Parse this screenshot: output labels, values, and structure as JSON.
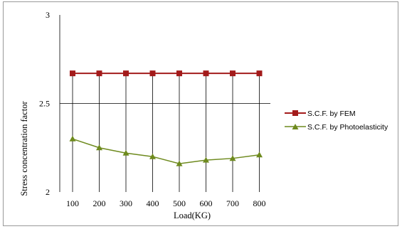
{
  "chart_data": {
    "type": "line",
    "title": "",
    "xlabel": "Load(KG)",
    "ylabel": "Stress concentration factor",
    "categories": [
      "100",
      "200",
      "300",
      "400",
      "500",
      "600",
      "700",
      "800"
    ],
    "ylim": [
      2,
      3
    ],
    "yticks": [
      "2",
      "2.5",
      "3"
    ],
    "grid": {
      "vertical": true,
      "horizontal": true
    },
    "legend_position": "right",
    "series": [
      {
        "name": "S.C.F. by FEM",
        "values": [
          2.67,
          2.67,
          2.67,
          2.67,
          2.67,
          2.67,
          2.67,
          2.67
        ],
        "color": "#a31b1b",
        "marker": "square"
      },
      {
        "name": "S.C.F. by Photoelasticity",
        "values": [
          2.3,
          2.25,
          2.22,
          2.2,
          2.16,
          2.18,
          2.19,
          2.21
        ],
        "color": "#6e8a1e",
        "marker": "triangle"
      }
    ]
  }
}
